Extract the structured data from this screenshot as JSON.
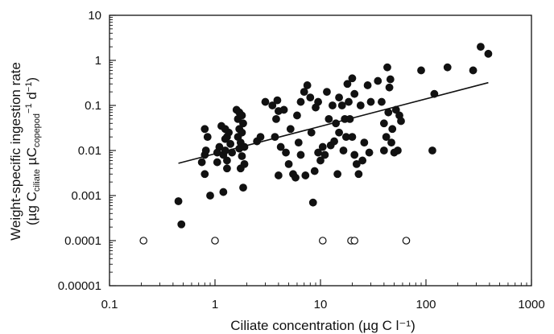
{
  "chart_data": {
    "type": "scatter",
    "x_scale": "log",
    "y_scale": "log",
    "xlim": [
      0.1,
      1000
    ],
    "ylim": [
      1e-05,
      10
    ],
    "grid": false,
    "legend": "none",
    "x_ticks": [
      "0.1",
      "1",
      "10",
      "100",
      "1000"
    ],
    "y_ticks": [
      "0.00001",
      "0.0001",
      "0.001",
      "0.01",
      "0.1",
      "1",
      "10"
    ],
    "xlabel": "Ciliate concentration (µg C l⁻¹)",
    "ylabel": {
      "line1": "Weight-specific ingestion rate",
      "line2_open": "(µg C",
      "line2_sub1": "ciliate",
      "line2_mid": " µC",
      "line2_sub2": "copepod",
      "line2_sup": "−1",
      "line2_close": " d",
      "line2_sup2": "−1",
      "line2_end": ")"
    },
    "colors": {
      "filled_marker": "#111111",
      "open_marker": "#ffffff",
      "line": "#111111"
    },
    "regression_line": {
      "x": [
        0.45,
        390
      ],
      "y": [
        0.0052,
        0.32
      ]
    },
    "series": [
      {
        "marker": "filled",
        "points": [
          [
            0.45,
            0.00075
          ],
          [
            0.48,
            0.00023
          ],
          [
            0.75,
            0.0055
          ],
          [
            0.8,
            0.008
          ],
          [
            0.8,
            0.003
          ],
          [
            0.8,
            0.03
          ],
          [
            0.82,
            0.01
          ],
          [
            0.85,
            0.02
          ],
          [
            0.9,
            0.001
          ],
          [
            1.05,
            0.009
          ],
          [
            1.05,
            0.0055
          ],
          [
            1.1,
            0.012
          ],
          [
            1.15,
            0.035
          ],
          [
            1.2,
            0.008
          ],
          [
            1.2,
            0.0012
          ],
          [
            1.25,
            0.03
          ],
          [
            1.25,
            0.018
          ],
          [
            1.25,
            0.01
          ],
          [
            1.3,
            0.02
          ],
          [
            1.3,
            0.006
          ],
          [
            1.3,
            0.004
          ],
          [
            1.35,
            0.025
          ],
          [
            1.4,
            0.014
          ],
          [
            1.45,
            0.009
          ],
          [
            1.6,
            0.08
          ],
          [
            1.65,
            0.05
          ],
          [
            1.65,
            0.02
          ],
          [
            1.7,
            0.07
          ],
          [
            1.7,
            0.03
          ],
          [
            1.7,
            0.011
          ],
          [
            1.75,
            0.015
          ],
          [
            1.75,
            0.004
          ],
          [
            1.8,
            0.06
          ],
          [
            1.8,
            0.025
          ],
          [
            1.8,
            0.0075
          ],
          [
            1.85,
            0.04
          ],
          [
            1.85,
            0.0015
          ],
          [
            1.9,
            0.012
          ],
          [
            1.9,
            0.005
          ],
          [
            2.5,
            0.016
          ],
          [
            2.7,
            0.02
          ],
          [
            3.0,
            0.12
          ],
          [
            3.5,
            0.1
          ],
          [
            3.7,
            0.02
          ],
          [
            3.8,
            0.05
          ],
          [
            3.9,
            0.13
          ],
          [
            4.0,
            0.075
          ],
          [
            4.0,
            0.0028
          ],
          [
            4.2,
            0.012
          ],
          [
            4.5,
            0.08
          ],
          [
            4.7,
            0.009
          ],
          [
            5.0,
            0.005
          ],
          [
            5.2,
            0.03
          ],
          [
            5.5,
            0.003
          ],
          [
            5.8,
            0.0025
          ],
          [
            6.0,
            0.06
          ],
          [
            6.2,
            0.015
          ],
          [
            6.5,
            0.12
          ],
          [
            6.5,
            0.008
          ],
          [
            7.0,
            0.2
          ],
          [
            7.2,
            0.0028
          ],
          [
            7.5,
            0.28
          ],
          [
            8.0,
            0.15
          ],
          [
            8.2,
            0.025
          ],
          [
            8.5,
            0.0007
          ],
          [
            8.8,
            0.0035
          ],
          [
            9.0,
            0.09
          ],
          [
            9.5,
            0.12
          ],
          [
            9.5,
            0.009
          ],
          [
            10.0,
            0.006
          ],
          [
            10.5,
            0.012
          ],
          [
            11.0,
            0.008
          ],
          [
            11.5,
            0.2
          ],
          [
            12.0,
            0.05
          ],
          [
            12.5,
            0.013
          ],
          [
            13.0,
            0.1
          ],
          [
            13.5,
            0.016
          ],
          [
            14.0,
            0.04
          ],
          [
            14.5,
            0.003
          ],
          [
            15.0,
            0.15
          ],
          [
            15.0,
            0.025
          ],
          [
            16.0,
            0.1
          ],
          [
            16.5,
            0.01
          ],
          [
            17.0,
            0.05
          ],
          [
            17.5,
            0.02
          ],
          [
            18.0,
            0.3
          ],
          [
            18.5,
            0.12
          ],
          [
            19.0,
            0.05
          ],
          [
            20.0,
            0.4
          ],
          [
            20.0,
            0.02
          ],
          [
            21.0,
            0.18
          ],
          [
            21.0,
            0.008
          ],
          [
            22.0,
            0.005
          ],
          [
            23.0,
            0.003
          ],
          [
            24.0,
            0.1
          ],
          [
            25.0,
            0.006
          ],
          [
            26.0,
            0.015
          ],
          [
            28.0,
            0.28
          ],
          [
            29.0,
            0.009
          ],
          [
            30.0,
            0.12
          ],
          [
            35.0,
            0.35
          ],
          [
            38.0,
            0.12
          ],
          [
            40.0,
            0.04
          ],
          [
            40.0,
            0.01
          ],
          [
            42.0,
            0.02
          ],
          [
            43.0,
            0.7
          ],
          [
            44.0,
            0.07
          ],
          [
            45.0,
            0.25
          ],
          [
            46.0,
            0.38
          ],
          [
            47.0,
            0.015
          ],
          [
            48.0,
            0.03
          ],
          [
            50.0,
            0.009
          ],
          [
            52.0,
            0.08
          ],
          [
            54.0,
            0.01
          ],
          [
            56.0,
            0.06
          ],
          [
            58.0,
            0.045
          ],
          [
            90.0,
            0.6
          ],
          [
            115.0,
            0.01
          ],
          [
            120.0,
            0.18
          ],
          [
            160.0,
            0.7
          ],
          [
            280.0,
            0.6
          ],
          [
            330.0,
            2.0
          ],
          [
            390.0,
            1.4
          ]
        ]
      },
      {
        "marker": "open",
        "points": [
          [
            0.21,
            0.0001
          ],
          [
            1.0,
            0.0001
          ],
          [
            10.5,
            0.0001
          ],
          [
            19.5,
            0.0001
          ],
          [
            21.0,
            0.0001
          ],
          [
            65.0,
            0.0001
          ]
        ]
      }
    ]
  }
}
